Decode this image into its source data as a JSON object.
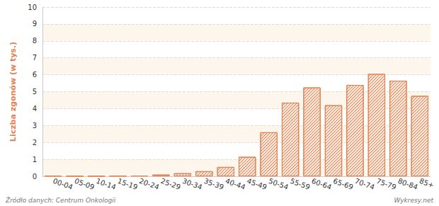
{
  "chart_data": {
    "type": "bar",
    "y_label": "Liczba zgonów (w tys.)",
    "categories": [
      "00-04",
      "05-09",
      "10-14",
      "15-19",
      "20-24",
      "25-29",
      "30-34",
      "35-39",
      "40-44",
      "45-49",
      "50-54",
      "55-59",
      "60-64",
      "65-69",
      "70-74",
      "75-79",
      "80-84",
      "85+"
    ],
    "values": [
      0.03,
      0.02,
      0.02,
      0.03,
      0.04,
      0.1,
      0.18,
      0.3,
      0.55,
      1.15,
      2.6,
      4.35,
      5.25,
      4.2,
      5.4,
      6.05,
      5.65,
      4.75
    ],
    "color": "#e0814f",
    "ylim": [
      0,
      10
    ],
    "yticks": [
      0,
      1,
      2,
      3,
      4,
      5,
      6,
      7,
      8,
      9,
      10
    ],
    "grid": true,
    "annotations": [
      "Źródło danych: Centrum Onkologii",
      "Wykresy.net",
      "wykresy.net"
    ]
  }
}
